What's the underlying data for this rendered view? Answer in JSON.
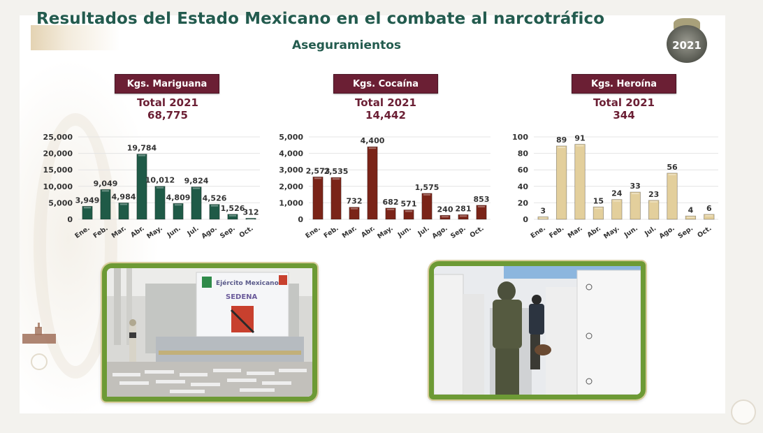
{
  "header": {
    "title": "Resultados del Estado Mexicano en el combate al narcotráfico",
    "subtitle": "Aseguramientos",
    "badge_year": "2021"
  },
  "colors": {
    "title_green": "#235b4e",
    "maroon": "#6b1f34",
    "mariguana_bar": "#1f5a47",
    "cocaina_bar": "#7a2418",
    "heroina_bar": "#e3cf9c",
    "photo_frame": "#6d9a35"
  },
  "panels": [
    {
      "header": "Kgs. Mariguana",
      "total_label": "Total 2021",
      "total_value": "68,775"
    },
    {
      "header": "Kgs. Cocaína",
      "total_label": "Total 2021",
      "total_value": "14,442"
    },
    {
      "header": "Kgs. Heroína",
      "total_label": "Total 2021",
      "total_value": "344"
    }
  ],
  "photos": [
    {
      "description": "Soldier beside SEDENA Ejército Mexicano banner with packages on floor",
      "banner_text_1": "Ejército Mexicano",
      "banner_text_2": "SEDENA"
    },
    {
      "description": "Soldiers with dog inspecting stacked boxes"
    }
  ],
  "chart_data": [
    {
      "type": "bar",
      "title": "Kgs. Mariguana — Total 2021: 68,775",
      "categories": [
        "Ene.",
        "Feb.",
        "Mar.",
        "Abr.",
        "May.",
        "Jun.",
        "Jul.",
        "Ago.",
        "Sep.",
        "Oct."
      ],
      "values": [
        3949,
        9049,
        4984,
        19784,
        10012,
        4809,
        9824,
        4526,
        1526,
        312
      ],
      "labels": [
        "3,949",
        "9,049",
        "4,984",
        "19,784",
        "10,012",
        "4,809",
        "9,824",
        "4,526",
        "1,526",
        "312"
      ],
      "yticks": [
        "0",
        "5,000",
        "10,000",
        "15,000",
        "20,000",
        "25,000"
      ],
      "ylim": [
        0,
        25000
      ],
      "grid": true,
      "xlabel": "",
      "ylabel": ""
    },
    {
      "type": "bar",
      "title": "Kgs. Cocaína — Total 2021: 14,442",
      "categories": [
        "Ene.",
        "Feb.",
        "Mar.",
        "Abr.",
        "May.",
        "Jun.",
        "Jul.",
        "Ago.",
        "Sep.",
        "Oct."
      ],
      "values": [
        2573,
        2535,
        732,
        4400,
        682,
        571,
        1575,
        240,
        281,
        853
      ],
      "labels": [
        "2,573",
        "2,535",
        "732",
        "4,400",
        "682",
        "571",
        "1,575",
        "240",
        "281",
        "853"
      ],
      "yticks": [
        "0",
        "1,000",
        "2,000",
        "3,000",
        "4,000",
        "5,000"
      ],
      "ylim": [
        0,
        5000
      ],
      "grid": true,
      "xlabel": "",
      "ylabel": ""
    },
    {
      "type": "bar",
      "title": "Kgs. Heroína — Total 2021: 344",
      "categories": [
        "Ene.",
        "Feb.",
        "Mar.",
        "Abr.",
        "May.",
        "Jun.",
        "Jul.",
        "Ago.",
        "Sep.",
        "Oct."
      ],
      "values": [
        3,
        89,
        91,
        15,
        24,
        33,
        23,
        56,
        4,
        6
      ],
      "labels": [
        "3",
        "89",
        "91",
        "15",
        "24",
        "33",
        "23",
        "56",
        "4",
        "6"
      ],
      "yticks": [
        "0",
        "20",
        "40",
        "60",
        "80",
        "100"
      ],
      "ylim": [
        0,
        100
      ],
      "grid": true,
      "xlabel": "",
      "ylabel": ""
    }
  ]
}
